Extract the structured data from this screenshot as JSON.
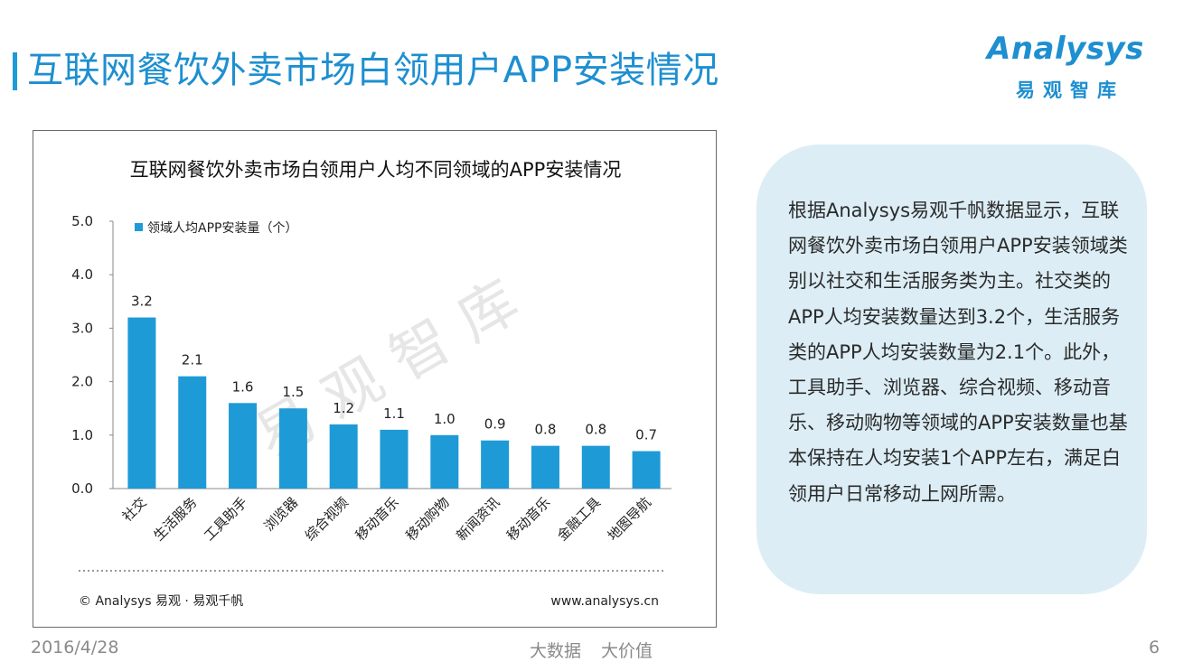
{
  "header": {
    "title": "互联网餐饮外卖市场白领用户APP安装情况",
    "logo_word": "Analysys",
    "logo_sub": "易观智库"
  },
  "chart_data": {
    "type": "bar",
    "title": "互联网餐饮外卖市场白领用户人均不同领域的APP安装情况",
    "categories": [
      "社交",
      "生活服务",
      "工具助手",
      "浏览器",
      "综合视频",
      "移动音乐",
      "移动购物",
      "新闻资讯",
      "移动音乐",
      "金融工具",
      "地图导航"
    ],
    "series": [
      {
        "name": "领域人均APP安装量（个）",
        "values": [
          3.2,
          2.1,
          1.6,
          1.5,
          1.2,
          1.1,
          1.0,
          0.9,
          0.8,
          0.8,
          0.7
        ]
      }
    ],
    "value_labels": [
      "3.2",
      "2.1",
      "1.6",
      "1.5",
      "1.2",
      "1.1",
      "1.0",
      "0.9",
      "0.8",
      "0.8",
      "0.7"
    ],
    "yticks": [
      "0.0",
      "1.0",
      "2.0",
      "3.0",
      "4.0",
      "5.0"
    ],
    "ylim": [
      0,
      5
    ],
    "grid": false,
    "legend_position": "top-left",
    "bar_color": "#1e9ad6",
    "source_left": "© Analysys 易观 · 易观千帆",
    "source_right": "www.analysys.cn"
  },
  "watermark": "易观智库",
  "panel": {
    "text": "根据Analysys易观千帆数据显示，互联网餐饮外卖市场白领用户APP安装领域类别以社交和生活服务类为主。社交类的APP人均安装数量达到3.2个，生活服务类的APP人均安装数量为2.1个。此外，工具助手、浏览器、综合视频、移动音乐、移动购物等领域的APP安装数量也基本保持在人均安装1个APP左右，满足白领用户日常移动上网所需。"
  },
  "footer": {
    "date": "2016/4/28",
    "mid1": "大数据",
    "mid2": "大价值",
    "page": "6"
  },
  "colors": {
    "accent": "#1e8fd0",
    "panel_bg": "#dcedf5"
  }
}
